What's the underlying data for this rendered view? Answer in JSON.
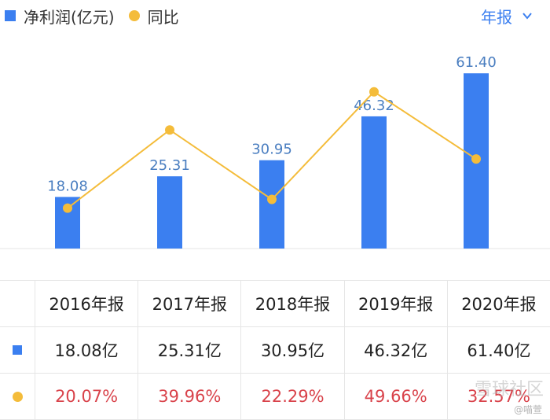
{
  "legend": {
    "bar_label": "净利润(亿元)",
    "line_label": "同比"
  },
  "period_selector": {
    "label": "年报"
  },
  "colors": {
    "bar": "#3b7ff0",
    "line": "#f4bc3a",
    "pct_text": "#d9434b"
  },
  "chart_data": {
    "type": "bar",
    "categories": [
      "2016年报",
      "2017年报",
      "2018年报",
      "2019年报",
      "2020年报"
    ],
    "series": [
      {
        "name": "净利润(亿元)",
        "type": "bar",
        "values": [
          18.08,
          25.31,
          30.95,
          46.32,
          61.4
        ],
        "labels": [
          "18.08",
          "25.31",
          "30.95",
          "46.32",
          "61.40"
        ]
      },
      {
        "name": "同比",
        "type": "line",
        "values": [
          20.07,
          39.96,
          22.29,
          49.66,
          32.57
        ]
      }
    ],
    "ylim": [
      0,
      70
    ],
    "grid": false
  },
  "table": {
    "headers": [
      "2016年报",
      "2017年报",
      "2018年报",
      "2019年报",
      "2020年报"
    ],
    "profit_row": [
      "18.08亿",
      "25.31亿",
      "30.95亿",
      "46.32亿",
      "61.40亿"
    ],
    "yoy_row": [
      "20.07%",
      "39.96%",
      "22.29%",
      "49.66%",
      "32.57%"
    ]
  },
  "watermark": {
    "main": "雪球社区",
    "sub": "@喵萱"
  }
}
